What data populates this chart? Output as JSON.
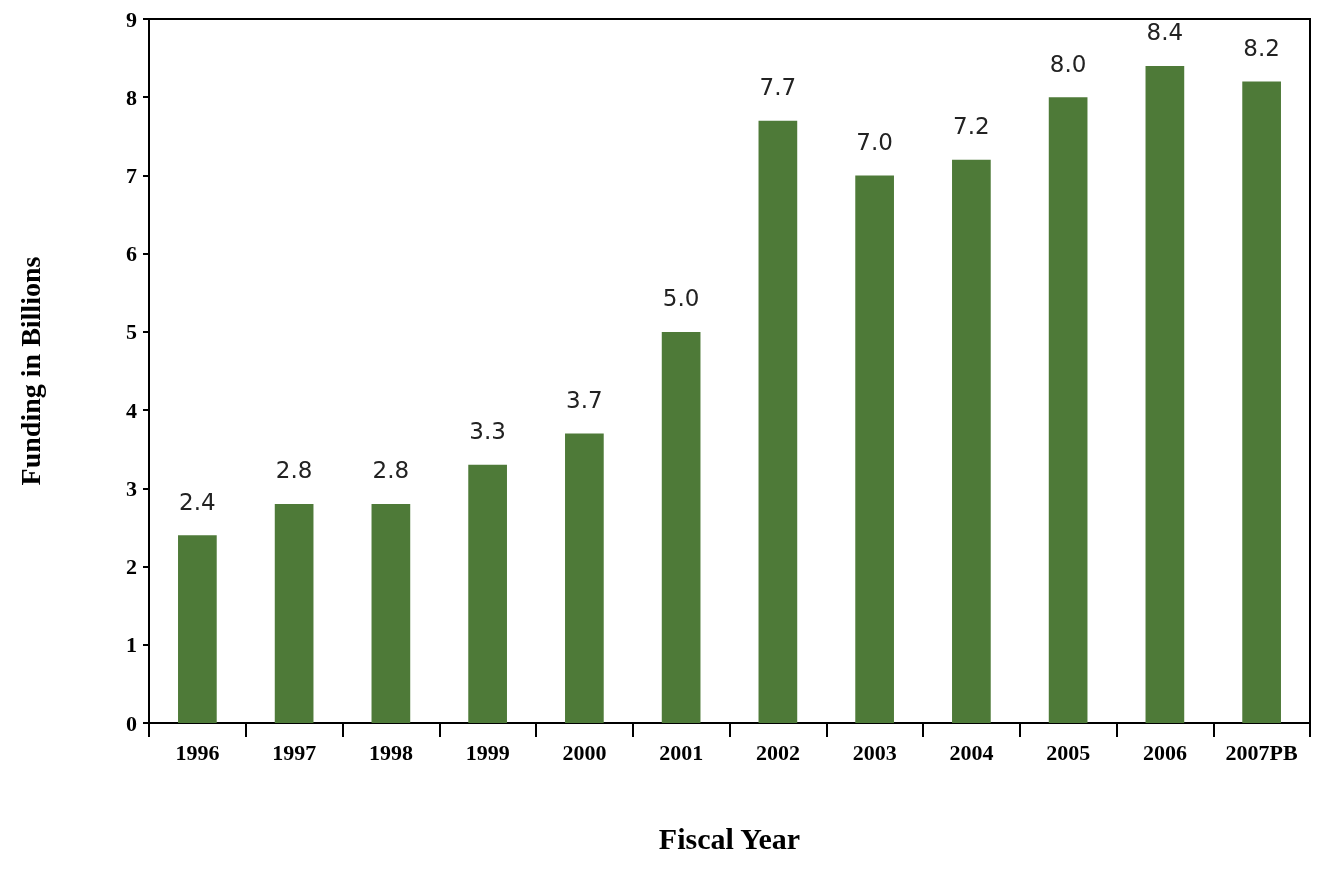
{
  "chart_data": {
    "type": "bar",
    "xlabel": "Fiscal Year",
    "ylabel": "Funding in Billions",
    "categories": [
      "1996",
      "1997",
      "1998",
      "1999",
      "2000",
      "2001",
      "2002",
      "2003",
      "2004",
      "2005",
      "2006",
      "2007PB"
    ],
    "values": [
      2.4,
      2.8,
      2.8,
      3.3,
      3.7,
      5.0,
      7.7,
      7.0,
      7.2,
      8.0,
      8.4,
      8.2
    ],
    "value_labels": [
      "2.4",
      "2.8",
      "2.8",
      "3.3",
      "3.7",
      "5.0",
      "7.7",
      "7.0",
      "7.2",
      "8.0",
      "8.4",
      "8.2"
    ],
    "color": "#4e7a38",
    "ylim": [
      0,
      9
    ],
    "yticks": [
      0,
      1,
      2,
      3,
      4,
      5,
      6,
      7,
      8,
      9
    ],
    "grid": false
  }
}
